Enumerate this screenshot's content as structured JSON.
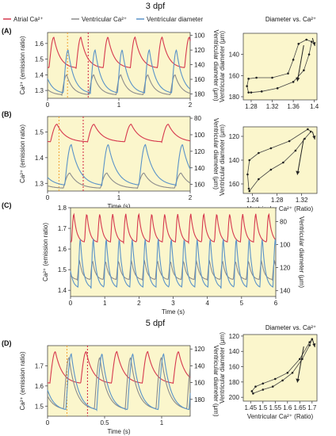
{
  "figure": {
    "title_top": "3 dpf",
    "title_bottom": "5 dpf",
    "legend": [
      {
        "label": "Atrial Ca²⁺",
        "color": "#d6384e"
      },
      {
        "label": "Ventricular Ca²⁺",
        "color": "#8c8c8c"
      },
      {
        "label": "Ventricular diameter",
        "color": "#5a93c8"
      }
    ],
    "colors": {
      "atrial": "#d6384e",
      "ventricular": "#8c8c8c",
      "diameter": "#5a93c8",
      "background": "#fbf6cc",
      "marker_orange": "#f0a030",
      "marker_red": "#d02040"
    }
  },
  "chart_data": [
    {
      "id": "A",
      "panel_label": "(A)",
      "type": "line",
      "xlabel": "",
      "ylabel": "Ca²⁺ (emission ratio)",
      "y2label": "Ventricular diameter (μm)",
      "xlim": [
        0,
        2
      ],
      "ylim": [
        1.25,
        1.67
      ],
      "y2lim": [
        186,
        96
      ],
      "y2_reversed": true,
      "xticks": [
        0,
        1,
        2
      ],
      "yticks": [
        1.3,
        1.4,
        1.5,
        1.6
      ],
      "y2ticks": [
        100,
        120,
        140,
        160,
        180
      ],
      "period": 0.38,
      "markers": [
        0.28,
        0.57
      ],
      "series": [
        {
          "name": "Atrial Ca²⁺",
          "key": "atrial",
          "baseline": 1.44,
          "peak": 1.64,
          "phase": 0.02
        },
        {
          "name": "Ventricular Ca²⁺",
          "key": "ventricular",
          "baseline": 1.27,
          "peak": 1.4,
          "phase": 0.2
        },
        {
          "name": "Ventricular diameter",
          "key": "diameter",
          "baseline": 180,
          "peak": 120,
          "phase": 0.22
        }
      ]
    },
    {
      "id": "A-xy",
      "type": "scatter",
      "title": "Diameter vs. Ca²⁺",
      "xlabel": "",
      "ylabel": "Ventricular diameter (μm)",
      "xlim": [
        1.265,
        1.405
      ],
      "ylim": [
        183,
        120
      ],
      "y_reversed": true,
      "xticks": [
        1.28,
        1.32,
        1.36,
        1.4
      ],
      "yticks": [
        140,
        160,
        180
      ],
      "points": [
        [
          1.28,
          176
        ],
        [
          1.3,
          175
        ],
        [
          1.33,
          172
        ],
        [
          1.36,
          166
        ],
        [
          1.38,
          155
        ],
        [
          1.39,
          140
        ],
        [
          1.395,
          128
        ],
        [
          1.385,
          126
        ],
        [
          1.37,
          130
        ],
        [
          1.36,
          145
        ],
        [
          1.35,
          158
        ],
        [
          1.32,
          162
        ],
        [
          1.29,
          162
        ],
        [
          1.275,
          163
        ],
        [
          1.272,
          170
        ],
        [
          1.275,
          176
        ]
      ]
    },
    {
      "id": "B",
      "panel_label": "(B)",
      "type": "line",
      "xlabel": "Time (s)",
      "ylabel": "Ca²⁺ (emission ratio)",
      "y2label": "Ventricular diameter (μm)",
      "xlim": [
        0,
        2
      ],
      "ylim": [
        1.27,
        1.56
      ],
      "y2lim": [
        168,
        78
      ],
      "y2_reversed": true,
      "xticks": [
        0,
        1,
        2
      ],
      "yticks": [
        1.3,
        1.4,
        1.5
      ],
      "y2ticks": [
        80,
        100,
        120,
        140,
        160
      ],
      "period": 0.52,
      "markers": [
        0.16,
        0.5
      ],
      "series": [
        {
          "name": "Atrial Ca²⁺",
          "key": "atrial",
          "baseline": 1.46,
          "peak": 1.53,
          "phase": 0.04
        },
        {
          "name": "Ventricular Ca²⁺",
          "key": "ventricular",
          "baseline": 1.28,
          "peak": 1.34,
          "phase": 0.22
        },
        {
          "name": "Ventricular diameter",
          "key": "diameter",
          "baseline": 162,
          "peak": 112,
          "phase": 0.24
        }
      ]
    },
    {
      "id": "B-xy",
      "type": "scatter",
      "title": "",
      "xlabel": "Ventricular Ca²⁺ (Ratio)",
      "ylabel": "Ventricular diameter (μm)",
      "xlim": [
        1.225,
        1.345
      ],
      "ylim": [
        168,
        112
      ],
      "y_reversed": true,
      "xticks": [
        1.24,
        1.28,
        1.32
      ],
      "yticks": [
        120,
        140,
        160
      ],
      "points": [
        [
          1.235,
          166
        ],
        [
          1.25,
          156
        ],
        [
          1.27,
          148
        ],
        [
          1.29,
          142
        ],
        [
          1.31,
          132
        ],
        [
          1.325,
          122
        ],
        [
          1.335,
          116
        ],
        [
          1.33,
          114
        ],
        [
          1.3,
          124
        ],
        [
          1.27,
          130
        ],
        [
          1.25,
          134
        ],
        [
          1.235,
          140
        ],
        [
          1.232,
          152
        ],
        [
          1.234,
          164
        ]
      ]
    },
    {
      "id": "C",
      "panel_label": "(C)",
      "type": "line",
      "xlabel": "Time (s)",
      "ylabel": "Ca²⁺ (emission ratio)",
      "y2label": "Ventricular diameter (μm)",
      "xlim": [
        0,
        6
      ],
      "ylim": [
        1.37,
        1.8
      ],
      "y2lim": [
        145,
        68
      ],
      "y2_reversed": true,
      "xticks": [
        0,
        1,
        2,
        3,
        4,
        5,
        6
      ],
      "yticks": [
        1.4,
        1.5,
        1.6,
        1.7,
        1.8
      ],
      "y2ticks": [
        80,
        100,
        120,
        140
      ],
      "period": 0.38,
      "markers": [],
      "series": [
        {
          "name": "Atrial Ca²⁺",
          "key": "atrial",
          "baseline": 1.63,
          "peak": 1.77,
          "phase": 0.03
        },
        {
          "name": "Ventricular Ca²⁺",
          "key": "ventricular",
          "baseline": 1.45,
          "peak": 1.54,
          "phase": 0.2
        },
        {
          "name": "Ventricular diameter",
          "key": "diameter",
          "baseline": 138,
          "peak": 95,
          "phase": 0.22
        }
      ]
    },
    {
      "id": "D",
      "panel_label": "(D)",
      "type": "line",
      "xlabel": "Time (s)",
      "ylabel": "Ca²⁺ (emission ratio)",
      "y2label": "Ventricular diameter (μm)",
      "xlim": [
        0,
        1.25
      ],
      "ylim": [
        1.45,
        1.8
      ],
      "y2lim": [
        200,
        116
      ],
      "y2_reversed": true,
      "xticks": [
        0,
        0.5,
        1
      ],
      "xticklabels": [
        "0",
        "0.5",
        "1"
      ],
      "yticks": [
        1.5,
        1.6,
        1.7
      ],
      "y2ticks": [
        120,
        140,
        160,
        180
      ],
      "period": 0.27,
      "markers": [
        0.17,
        0.35
      ],
      "series": [
        {
          "name": "Atrial Ca²⁺",
          "key": "atrial",
          "baseline": 1.61,
          "peak": 1.77,
          "phase": 0.02
        },
        {
          "name": "Ventricular Ca²⁺",
          "key": "ventricular",
          "baseline": 1.48,
          "peak": 1.74,
          "phase": 0.14
        },
        {
          "name": "Ventricular diameter",
          "key": "diameter",
          "baseline": 194,
          "peak": 126,
          "phase": 0.16
        }
      ]
    },
    {
      "id": "D-xy",
      "type": "scatter",
      "title": "Diameter vs. Ca²⁺",
      "xlabel": "Ventricular Ca²⁺ (Ratio)",
      "ylabel": "Ventricular diameter (μm)",
      "xlim": [
        1.42,
        1.72
      ],
      "ylim": [
        205,
        118
      ],
      "y_reversed": true,
      "xticks": [
        1.45,
        1.5,
        1.55,
        1.6,
        1.65,
        1.7
      ],
      "yticks": [
        120,
        140,
        160,
        180,
        200
      ],
      "points": [
        [
          1.46,
          195
        ],
        [
          1.5,
          190
        ],
        [
          1.54,
          186
        ],
        [
          1.58,
          178
        ],
        [
          1.62,
          168
        ],
        [
          1.66,
          150
        ],
        [
          1.69,
          132
        ],
        [
          1.7,
          124
        ],
        [
          1.69,
          128
        ],
        [
          1.65,
          150
        ],
        [
          1.6,
          168
        ],
        [
          1.55,
          176
        ],
        [
          1.5,
          182
        ],
        [
          1.47,
          186
        ],
        [
          1.455,
          192
        ]
      ]
    }
  ]
}
